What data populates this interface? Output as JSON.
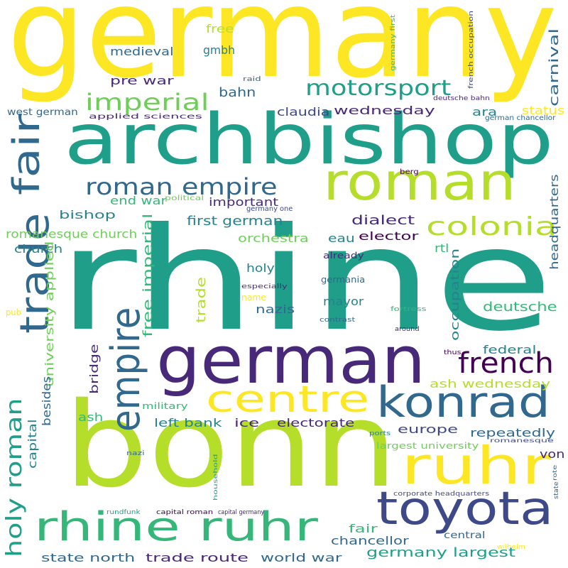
{
  "colors": {
    "yellow": "#fde725",
    "lime": "#b5de2b",
    "green": "#6ece58",
    "mint": "#35b779",
    "teal": "#1f9e89",
    "cyan": "#26828e",
    "blue": "#31688e",
    "indigo": "#3e4989",
    "violet": "#482878",
    "purple": "#440154"
  },
  "words": [
    {
      "text": "germany",
      "color": "yellow"
    },
    {
      "text": "rhine",
      "color": "teal"
    },
    {
      "text": "bonn",
      "color": "lime"
    },
    {
      "text": "archbishop",
      "color": "teal"
    },
    {
      "text": "german",
      "color": "violet"
    },
    {
      "text": "roman",
      "color": "lime"
    },
    {
      "text": "ruhr",
      "color": "yellow"
    },
    {
      "text": "toyota",
      "color": "indigo"
    },
    {
      "text": "konrad",
      "color": "blue"
    },
    {
      "text": "rhine ruhr",
      "color": "mint"
    },
    {
      "text": "fair",
      "color": "blue"
    },
    {
      "text": "trade",
      "color": "blue"
    },
    {
      "text": "empire",
      "color": "blue"
    },
    {
      "text": "centre",
      "color": "yellow"
    },
    {
      "text": "french",
      "color": "purple"
    },
    {
      "text": "colonia",
      "color": "lime"
    },
    {
      "text": "roman empire",
      "color": "blue"
    },
    {
      "text": "holy roman",
      "color": "teal"
    },
    {
      "text": "imperial",
      "color": "green"
    },
    {
      "text": "motorsport",
      "color": "teal"
    },
    {
      "text": "free",
      "color": "lime"
    },
    {
      "text": "medieval",
      "color": "blue"
    },
    {
      "text": "gmbh",
      "color": "cyan"
    },
    {
      "text": "pre war",
      "color": "violet"
    },
    {
      "text": "bahn",
      "color": "blue"
    },
    {
      "text": "claudia",
      "color": "indigo"
    },
    {
      "text": "wednesday",
      "color": "violet"
    },
    {
      "text": "carnival",
      "color": "blue"
    },
    {
      "text": "status",
      "color": "yellow"
    },
    {
      "text": "ara",
      "color": "cyan"
    },
    {
      "text": "west german",
      "color": "blue"
    },
    {
      "text": "applied sciences",
      "color": "violet"
    },
    {
      "text": "raid",
      "color": "blue"
    },
    {
      "text": "germany first",
      "color": "mint"
    },
    {
      "text": "french occupation",
      "color": "indigo"
    },
    {
      "text": "deutsche bahn",
      "color": "violet"
    },
    {
      "text": "german chancellor",
      "color": "blue"
    },
    {
      "text": "berg",
      "color": "purple"
    },
    {
      "text": "end war",
      "color": "mint"
    },
    {
      "text": "bishop",
      "color": "cyan"
    },
    {
      "text": "political",
      "color": "green"
    },
    {
      "text": "important",
      "color": "violet"
    },
    {
      "text": "germany one",
      "color": "indigo"
    },
    {
      "text": "first german",
      "color": "cyan"
    },
    {
      "text": "dialect",
      "color": "violet"
    },
    {
      "text": "romanesque church",
      "color": "green"
    },
    {
      "text": "orchestra",
      "color": "green"
    },
    {
      "text": "eau",
      "color": "cyan"
    },
    {
      "text": "elector",
      "color": "purple"
    },
    {
      "text": "church",
      "color": "cyan"
    },
    {
      "text": "rtl",
      "color": "mint"
    },
    {
      "text": "headquarters",
      "color": "blue"
    },
    {
      "text": "already",
      "color": "violet"
    },
    {
      "text": "holy",
      "color": "cyan"
    },
    {
      "text": "germania",
      "color": "blue"
    },
    {
      "text": "especially",
      "color": "violet"
    },
    {
      "text": "name",
      "color": "yellow"
    },
    {
      "text": "mayor",
      "color": "cyan"
    },
    {
      "text": "nazis",
      "color": "blue"
    },
    {
      "text": "deutsche",
      "color": "mint"
    },
    {
      "text": "fortress",
      "color": "mint"
    },
    {
      "text": "contrast",
      "color": "blue"
    },
    {
      "text": "around",
      "color": "violet"
    },
    {
      "text": "pub",
      "color": "yellow"
    },
    {
      "text": "university applied",
      "color": "green"
    },
    {
      "text": "free imperial",
      "color": "mint"
    },
    {
      "text": "trade",
      "color": "lime"
    },
    {
      "text": "occupation",
      "color": "cyan"
    },
    {
      "text": "federal",
      "color": "cyan"
    },
    {
      "text": "thus",
      "color": "purple"
    },
    {
      "text": "bridge",
      "color": "violet"
    },
    {
      "text": "besides",
      "color": "blue"
    },
    {
      "text": "ash wednesday",
      "color": "lime"
    },
    {
      "text": "military",
      "color": "mint"
    },
    {
      "text": "capital",
      "color": "cyan"
    },
    {
      "text": "ash",
      "color": "mint"
    },
    {
      "text": "left bank",
      "color": "cyan"
    },
    {
      "text": "ice",
      "color": "violet"
    },
    {
      "text": "electorate",
      "color": "violet"
    },
    {
      "text": "europe",
      "color": "indigo"
    },
    {
      "text": "repeatedly",
      "color": "blue"
    },
    {
      "text": "von",
      "color": "violet"
    },
    {
      "text": "ports",
      "color": "cyan"
    },
    {
      "text": "romanesque",
      "color": "indigo"
    },
    {
      "text": "largest university",
      "color": "green"
    },
    {
      "text": "nazi",
      "color": "blue"
    },
    {
      "text": "household",
      "color": "teal"
    },
    {
      "text": "rote",
      "color": "blue"
    },
    {
      "text": "corporate headquarters",
      "color": "indigo"
    },
    {
      "text": "state",
      "color": "blue"
    },
    {
      "text": "rundfunk",
      "color": "teal"
    },
    {
      "text": "capital roman",
      "color": "purple"
    },
    {
      "text": "capital germany",
      "color": "violet"
    },
    {
      "text": "fair",
      "color": "mint"
    },
    {
      "text": "chancellor",
      "color": "blue"
    },
    {
      "text": "central",
      "color": "blue"
    },
    {
      "text": "wilhelm",
      "color": "yellow"
    },
    {
      "text": "state north",
      "color": "blue"
    },
    {
      "text": "trade route",
      "color": "violet"
    },
    {
      "text": "world war",
      "color": "blue"
    },
    {
      "text": "germany largest",
      "color": "teal"
    }
  ]
}
